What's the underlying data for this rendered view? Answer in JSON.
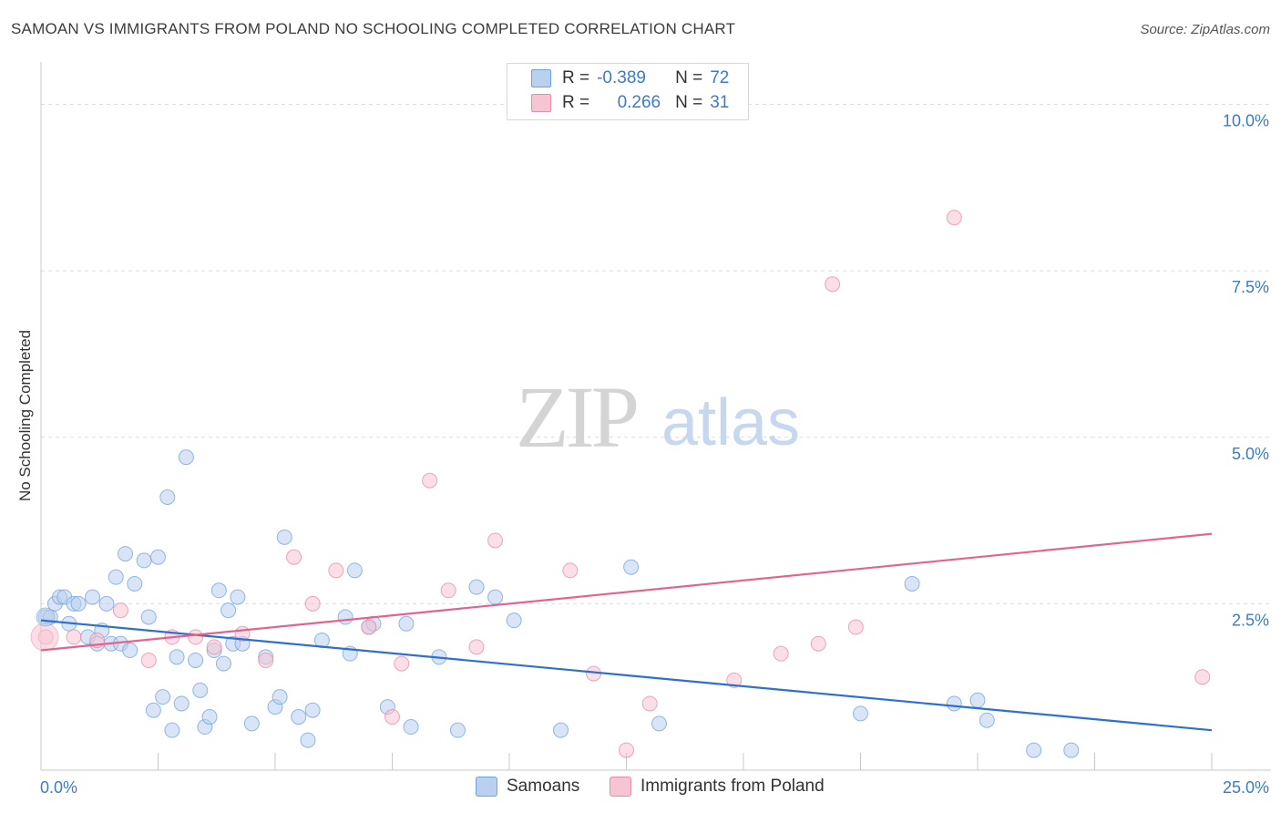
{
  "title": "SAMOAN VS IMMIGRANTS FROM POLAND NO SCHOOLING COMPLETED CORRELATION CHART",
  "source": "Source: ZipAtlas.com",
  "watermark": {
    "zip": "ZIP",
    "atlas": "atlas"
  },
  "legend_top": {
    "rows": [
      {
        "r_label": "R =",
        "r_value": "-0.389",
        "n_label": "N =",
        "n_value": "72"
      },
      {
        "r_label": "R =",
        "r_value": "0.266",
        "n_label": "N =",
        "n_value": "31"
      }
    ]
  },
  "chart_data": {
    "type": "scatter",
    "title": "SAMOAN VS IMMIGRANTS FROM POLAND NO SCHOOLING COMPLETED CORRELATION CHART",
    "xlabel": "",
    "ylabel": "No Schooling Completed",
    "xlim": [
      0,
      25
    ],
    "ylim": [
      0,
      10.5
    ],
    "x_tick_labels": [
      "0.0%",
      "25.0%"
    ],
    "y_ticks": [
      2.5,
      5.0,
      7.5,
      10.0
    ],
    "y_tick_labels": [
      "2.5%",
      "5.0%",
      "7.5%",
      "10.0%"
    ],
    "grid": true,
    "legend_position": "bottom",
    "series": [
      {
        "name": "Samoans",
        "color": "#6fa1dc",
        "fill": "#b9d0ef",
        "r": -0.389,
        "n": 72,
        "trend": {
          "x": [
            0,
            25
          ],
          "y": [
            2.25,
            0.6
          ]
        },
        "points": [
          [
            0.1,
            2.3
          ],
          [
            0.2,
            2.3
          ],
          [
            0.3,
            2.5
          ],
          [
            0.4,
            2.6
          ],
          [
            0.5,
            2.6
          ],
          [
            0.6,
            2.2
          ],
          [
            0.7,
            2.5
          ],
          [
            0.8,
            2.5
          ],
          [
            1.0,
            2.0
          ],
          [
            1.1,
            2.6
          ],
          [
            1.2,
            1.9
          ],
          [
            1.3,
            2.1
          ],
          [
            1.4,
            2.5
          ],
          [
            1.5,
            1.9
          ],
          [
            1.6,
            2.9
          ],
          [
            1.7,
            1.9
          ],
          [
            1.8,
            3.25
          ],
          [
            1.9,
            1.8
          ],
          [
            2.0,
            2.8
          ],
          [
            2.2,
            3.15
          ],
          [
            2.3,
            2.3
          ],
          [
            2.4,
            0.9
          ],
          [
            2.5,
            3.2
          ],
          [
            2.6,
            1.1
          ],
          [
            2.7,
            4.1
          ],
          [
            2.8,
            0.6
          ],
          [
            2.9,
            1.7
          ],
          [
            3.0,
            1.0
          ],
          [
            3.1,
            4.7
          ],
          [
            3.3,
            1.65
          ],
          [
            3.4,
            1.2
          ],
          [
            3.5,
            0.65
          ],
          [
            3.6,
            0.8
          ],
          [
            3.7,
            1.8
          ],
          [
            3.8,
            2.7
          ],
          [
            3.9,
            1.6
          ],
          [
            4.0,
            2.4
          ],
          [
            4.1,
            1.9
          ],
          [
            4.2,
            2.6
          ],
          [
            4.3,
            1.9
          ],
          [
            4.5,
            0.7
          ],
          [
            4.8,
            1.7
          ],
          [
            5.0,
            0.95
          ],
          [
            5.1,
            1.1
          ],
          [
            5.2,
            3.5
          ],
          [
            5.5,
            0.8
          ],
          [
            5.7,
            0.45
          ],
          [
            5.8,
            0.9
          ],
          [
            6.0,
            1.95
          ],
          [
            6.5,
            2.3
          ],
          [
            6.6,
            1.75
          ],
          [
            6.7,
            3.0
          ],
          [
            7.0,
            2.15
          ],
          [
            7.1,
            2.2
          ],
          [
            7.4,
            0.95
          ],
          [
            7.8,
            2.2
          ],
          [
            7.9,
            0.65
          ],
          [
            8.5,
            1.7
          ],
          [
            8.9,
            0.6
          ],
          [
            9.3,
            2.75
          ],
          [
            9.7,
            2.6
          ],
          [
            10.1,
            2.25
          ],
          [
            11.1,
            0.6
          ],
          [
            12.6,
            3.05
          ],
          [
            13.2,
            0.7
          ],
          [
            17.5,
            0.85
          ],
          [
            18.6,
            2.8
          ],
          [
            19.5,
            1.0
          ],
          [
            20.0,
            1.05
          ],
          [
            20.2,
            0.75
          ],
          [
            21.2,
            0.3
          ],
          [
            22.0,
            0.3
          ]
        ]
      },
      {
        "name": "Immigrants from Poland",
        "color": "#e98aa7",
        "fill": "#f6c4d3",
        "r": 0.266,
        "n": 31,
        "trend": {
          "x": [
            0,
            25
          ],
          "y": [
            1.8,
            3.55
          ]
        },
        "points": [
          [
            0.1,
            2.0
          ],
          [
            0.7,
            2.0
          ],
          [
            1.2,
            1.95
          ],
          [
            1.7,
            2.4
          ],
          [
            2.3,
            1.65
          ],
          [
            2.8,
            2.0
          ],
          [
            3.3,
            2.0
          ],
          [
            3.7,
            1.85
          ],
          [
            4.3,
            2.05
          ],
          [
            4.8,
            1.65
          ],
          [
            5.4,
            3.2
          ],
          [
            5.8,
            2.5
          ],
          [
            6.3,
            3.0
          ],
          [
            7.0,
            2.15
          ],
          [
            7.5,
            0.8
          ],
          [
            7.7,
            1.6
          ],
          [
            8.3,
            4.35
          ],
          [
            8.7,
            2.7
          ],
          [
            9.3,
            1.85
          ],
          [
            9.7,
            3.45
          ],
          [
            11.3,
            3.0
          ],
          [
            11.8,
            1.45
          ],
          [
            12.5,
            0.3
          ],
          [
            13.0,
            1.0
          ],
          [
            14.8,
            1.35
          ],
          [
            15.8,
            1.75
          ],
          [
            16.6,
            1.9
          ],
          [
            16.9,
            7.3
          ],
          [
            17.4,
            2.15
          ],
          [
            19.5,
            8.3
          ],
          [
            24.8,
            1.4
          ]
        ]
      }
    ]
  }
}
